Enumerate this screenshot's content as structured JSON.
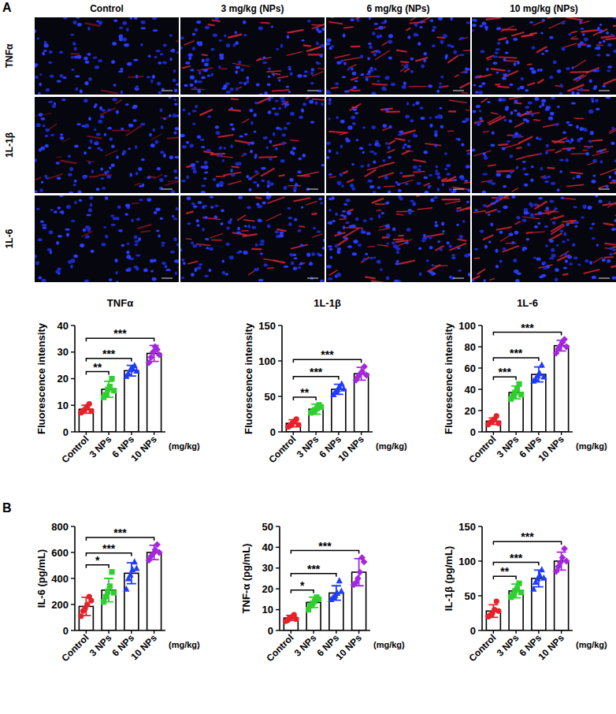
{
  "figure": {
    "panel_labels": [
      "A",
      "B"
    ],
    "columns": [
      "Control",
      "3 mg/kg (NPs)",
      "6 mg/kg (NPs)",
      "10 mg/kg (NPs)"
    ],
    "rows": [
      "TNFα",
      "1L-1β",
      "1L-6"
    ]
  },
  "chart_data": [
    {
      "type": "bar",
      "title": "TNFα",
      "y_label": "Fluorescence intensity",
      "x_unit": "(mg/kg)",
      "categories": [
        "Control",
        "3 NPs",
        "6 NPs",
        "10 NPs"
      ],
      "values": [
        8.5,
        16,
        23,
        29.5
      ],
      "errors": [
        1.5,
        3,
        2,
        3
      ],
      "points": [
        [
          7.2,
          8,
          8.5,
          9.5,
          10.5,
          7.8
        ],
        [
          13,
          14,
          16,
          17,
          20,
          15.5
        ],
        [
          21,
          22,
          23.5,
          24,
          25,
          23
        ],
        [
          26,
          28,
          30,
          32,
          31,
          29
        ]
      ],
      "colors": [
        "#e8202a",
        "#2fcf2f",
        "#1f3bff",
        "#a526e0"
      ],
      "ylim": [
        0,
        40
      ],
      "yticks": [
        0,
        10,
        20,
        30,
        40
      ],
      "annotations": [
        {
          "from": "Control",
          "to": "3 NPs",
          "text": "**"
        },
        {
          "from": "Control",
          "to": "6 NPs",
          "text": "***"
        },
        {
          "from": "Control",
          "to": "10 NPs",
          "text": "***"
        }
      ]
    },
    {
      "type": "bar",
      "title": "1L-1β",
      "y_label": "Fluorescence intensity",
      "x_unit": "(mg/kg)",
      "categories": [
        "Control",
        "3 NPs",
        "6 NPs",
        "10 NPs"
      ],
      "values": [
        12,
        32,
        60,
        82
      ],
      "errors": [
        5,
        7,
        7,
        9
      ],
      "points": [
        [
          7,
          9,
          12,
          15,
          18,
          10
        ],
        [
          27,
          29,
          31,
          33,
          38,
          35
        ],
        [
          53,
          57,
          60,
          63,
          68,
          61
        ],
        [
          73,
          78,
          82,
          85,
          92,
          80
        ]
      ],
      "colors": [
        "#e8202a",
        "#2fcf2f",
        "#1f3bff",
        "#a526e0"
      ],
      "ylim": [
        0,
        150
      ],
      "yticks": [
        0,
        50,
        100,
        150
      ],
      "annotations": [
        {
          "from": "Control",
          "to": "3 NPs",
          "text": "**"
        },
        {
          "from": "Control",
          "to": "6 NPs",
          "text": "***"
        },
        {
          "from": "Control",
          "to": "10 NPs",
          "text": "***"
        }
      ]
    },
    {
      "type": "bar",
      "title": "1L-6",
      "y_label": "Fluorescence intensity",
      "x_unit": "(mg/kg)",
      "categories": [
        "Control",
        "3 NPs",
        "6 NPs",
        "10 NPs"
      ],
      "values": [
        10,
        37,
        54,
        81
      ],
      "errors": [
        3,
        6,
        7,
        5
      ],
      "points": [
        [
          7,
          9,
          10,
          12,
          15,
          8
        ],
        [
          31,
          34,
          37,
          40,
          45,
          35
        ],
        [
          48,
          50,
          53,
          55,
          63,
          52
        ],
        [
          74,
          78,
          81,
          84,
          87,
          80
        ]
      ],
      "colors": [
        "#e8202a",
        "#2fcf2f",
        "#1f3bff",
        "#a526e0"
      ],
      "ylim": [
        0,
        100
      ],
      "yticks": [
        0,
        20,
        40,
        60,
        80,
        100
      ],
      "annotations": [
        {
          "from": "Control",
          "to": "3 NPs",
          "text": "***"
        },
        {
          "from": "Control",
          "to": "6 NPs",
          "text": "***"
        },
        {
          "from": "Control",
          "to": "10 NPs",
          "text": "***"
        }
      ]
    },
    {
      "type": "bar",
      "y_label": "IL-6 (pg/mL)",
      "x_unit": "(mg/kg)",
      "categories": [
        "Control",
        "3 NPs",
        "6 NPs",
        "10 NPs"
      ],
      "values": [
        185,
        310,
        440,
        600
      ],
      "errors": [
        70,
        90,
        80,
        55
      ],
      "points": [
        [
          110,
          150,
          170,
          200,
          260,
          230
        ],
        [
          220,
          260,
          300,
          340,
          450,
          290
        ],
        [
          320,
          400,
          430,
          470,
          530,
          480
        ],
        [
          540,
          570,
          590,
          620,
          660,
          600
        ]
      ],
      "colors": [
        "#e8202a",
        "#2fcf2f",
        "#1f3bff",
        "#a526e0"
      ],
      "ylim": [
        0,
        800
      ],
      "yticks": [
        0,
        200,
        400,
        600,
        800
      ],
      "annotations": [
        {
          "from": "Control",
          "to": "3 NPs",
          "text": "*"
        },
        {
          "from": "Control",
          "to": "6 NPs",
          "text": "***"
        },
        {
          "from": "Control",
          "to": "10 NPs",
          "text": "***"
        }
      ]
    },
    {
      "type": "bar",
      "y_label": "TNF-α (pg/mL)",
      "x_unit": "(mg/kg)",
      "categories": [
        "Control",
        "3 NPs",
        "6 NPs",
        "10 NPs"
      ],
      "values": [
        6,
        13.5,
        18,
        28
      ],
      "errors": [
        1.2,
        2.5,
        3.5,
        6.5
      ],
      "points": [
        [
          4.5,
          5,
          6,
          6.5,
          7.5,
          5.5
        ],
        [
          10,
          12,
          13,
          14,
          16,
          15
        ],
        [
          15,
          16,
          17,
          18,
          24,
          19
        ],
        [
          22,
          23,
          25,
          28,
          35,
          33
        ]
      ],
      "colors": [
        "#e8202a",
        "#2fcf2f",
        "#1f3bff",
        "#a526e0"
      ],
      "ylim": [
        0,
        50
      ],
      "yticks": [
        0,
        10,
        20,
        30,
        40,
        50
      ],
      "annotations": [
        {
          "from": "Control",
          "to": "3 NPs",
          "text": "*"
        },
        {
          "from": "Control",
          "to": "6 NPs",
          "text": "***"
        },
        {
          "from": "Control",
          "to": "10 NPs",
          "text": "***"
        }
      ]
    },
    {
      "type": "bar",
      "y_label": "IL-1β (pg/mL)",
      "x_unit": "(mg/kg)",
      "categories": [
        "Control",
        "3 NPs",
        "6 NPs",
        "10 NPs"
      ],
      "values": [
        28,
        57,
        75,
        100
      ],
      "errors": [
        9,
        10,
        12,
        13
      ],
      "points": [
        [
          20,
          22,
          25,
          30,
          42,
          28
        ],
        [
          48,
          52,
          57,
          60,
          68,
          55
        ],
        [
          60,
          70,
          75,
          80,
          88,
          76
        ],
        [
          85,
          92,
          98,
          105,
          118,
          100
        ]
      ],
      "colors": [
        "#e8202a",
        "#2fcf2f",
        "#1f3bff",
        "#a526e0"
      ],
      "ylim": [
        0,
        150
      ],
      "yticks": [
        0,
        50,
        100,
        150
      ],
      "annotations": [
        {
          "from": "Control",
          "to": "3 NPs",
          "text": "**"
        },
        {
          "from": "Control",
          "to": "6 NPs",
          "text": "***"
        },
        {
          "from": "Control",
          "to": "10 NPs",
          "text": "***"
        }
      ]
    }
  ]
}
